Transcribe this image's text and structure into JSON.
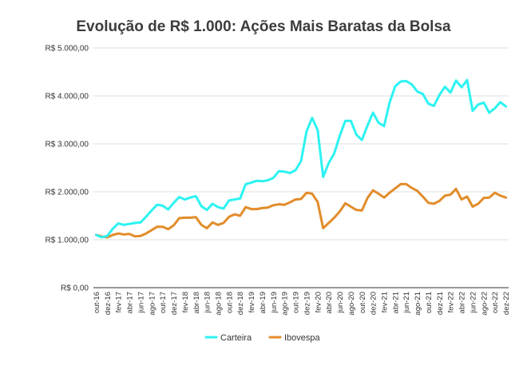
{
  "chart_data": {
    "type": "line",
    "title": "Evolução de R$ 1.000: Ações Mais Baratas da Bolsa",
    "xlabel": "",
    "ylabel": "",
    "ylim": [
      0,
      5000
    ],
    "y_ticks": [
      {
        "value": 0,
        "label": "R$ 0,00"
      },
      {
        "value": 1000,
        "label": "R$ 1.000,00"
      },
      {
        "value": 2000,
        "label": "R$ 2.000,00"
      },
      {
        "value": 3000,
        "label": "R$ 3.000,00"
      },
      {
        "value": 4000,
        "label": "R$ 4.000,00"
      },
      {
        "value": 5000,
        "label": "R$ 5.000,00"
      }
    ],
    "grid": true,
    "legend_position": "bottom",
    "x": [
      "out-16",
      "nov-16",
      "dez-16",
      "jan-17",
      "fev-17",
      "mar-17",
      "abr-17",
      "mai-17",
      "jun-17",
      "jul-17",
      "ago-17",
      "set-17",
      "out-17",
      "nov-17",
      "dez-17",
      "jan-18",
      "fev-18",
      "mar-18",
      "abr-18",
      "mai-18",
      "jun-18",
      "jul-18",
      "ago-18",
      "set-18",
      "out-18",
      "nov-18",
      "dez-18",
      "jan-19",
      "fev-19",
      "mar-19",
      "abr-19",
      "mai-19",
      "jun-19",
      "jul-19",
      "ago-19",
      "set-19",
      "out-19",
      "nov-19",
      "dez-19",
      "jan-20",
      "fev-20",
      "mar-20",
      "abr-20",
      "mai-20",
      "jun-20",
      "jul-20",
      "ago-20",
      "set-20",
      "out-20",
      "nov-20",
      "dez-20",
      "jan-21",
      "fev-21",
      "mar-21",
      "abr-21",
      "mai-21",
      "jun-21",
      "jul-21",
      "ago-21",
      "set-21",
      "out-21",
      "nov-21",
      "dez-21",
      "jan-22",
      "fev-22",
      "mar-22",
      "abr-22",
      "mai-22",
      "jun-22",
      "jul-22",
      "ago-22",
      "set-22",
      "out-22",
      "nov-22",
      "dez-22"
    ],
    "x_tick_labels": [
      "out-16",
      "dez-16",
      "fev-17",
      "abr-17",
      "jun-17",
      "ago-17",
      "out-17",
      "dez-17",
      "fev-18",
      "abr-18",
      "jun-18",
      "ago-18",
      "out-18",
      "dez-18",
      "fev-19",
      "abr-19",
      "jun-19",
      "ago-19",
      "out-19",
      "dez-19",
      "fev-20",
      "abr-20",
      "jun-20",
      "ago-20",
      "out-20",
      "dez-20",
      "fev-21",
      "abr-21",
      "jun-21",
      "ago-21",
      "out-21",
      "dez-21",
      "fev-22",
      "abr-22",
      "jun-22",
      "ago-22",
      "out-22",
      "dez-22"
    ],
    "series": [
      {
        "name": "Carteira",
        "color": "#2ef2f2",
        "values": [
          1100,
          1050,
          1080,
          1230,
          1340,
          1310,
          1330,
          1350,
          1360,
          1480,
          1610,
          1730,
          1710,
          1630,
          1770,
          1890,
          1840,
          1880,
          1910,
          1700,
          1620,
          1750,
          1680,
          1650,
          1820,
          1840,
          1860,
          2160,
          2190,
          2230,
          2220,
          2240,
          2290,
          2430,
          2420,
          2390,
          2450,
          2640,
          3260,
          3540,
          3290,
          2310,
          2600,
          2800,
          3170,
          3480,
          3480,
          3190,
          3080,
          3380,
          3650,
          3440,
          3370,
          3860,
          4200,
          4300,
          4310,
          4240,
          4090,
          4040,
          3840,
          3790,
          4020,
          4190,
          4070,
          4320,
          4180,
          4330,
          3690,
          3820,
          3860,
          3650,
          3740,
          3870,
          3780
        ]
      },
      {
        "name": "Ibovespa",
        "color": "#e28c2a",
        "values": [
          1100,
          1070,
          1050,
          1100,
          1130,
          1110,
          1120,
          1070,
          1080,
          1130,
          1200,
          1270,
          1270,
          1220,
          1300,
          1450,
          1460,
          1460,
          1470,
          1310,
          1240,
          1360,
          1310,
          1350,
          1480,
          1530,
          1500,
          1680,
          1640,
          1640,
          1660,
          1670,
          1720,
          1740,
          1730,
          1780,
          1840,
          1850,
          1980,
          1960,
          1790,
          1240,
          1350,
          1460,
          1590,
          1760,
          1690,
          1620,
          1610,
          1870,
          2030,
          1960,
          1880,
          1980,
          2070,
          2160,
          2160,
          2080,
          2020,
          1900,
          1770,
          1750,
          1810,
          1920,
          1940,
          2060,
          1840,
          1900,
          1690,
          1750,
          1870,
          1880,
          1980,
          1920,
          1880
        ]
      }
    ]
  }
}
